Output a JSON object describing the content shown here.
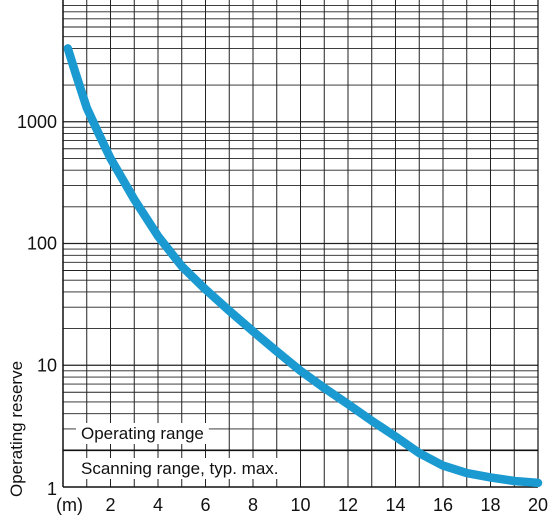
{
  "chart_data": {
    "type": "line",
    "title": "",
    "xlabel": "",
    "ylabel": "Operating reserve",
    "x_unit_label": "(m)",
    "x_tick_labels": [
      "2",
      "4",
      "6",
      "8",
      "10",
      "12",
      "14",
      "16",
      "18",
      "20"
    ],
    "y_tick_labels": [
      "1",
      "10",
      "100",
      "1000"
    ],
    "xlim": [
      0,
      20
    ],
    "ylim": [
      1,
      10000
    ],
    "yscale": "log",
    "grid": true,
    "series": [
      {
        "color": "#1a9ad0",
        "x": [
          0.2,
          0.5,
          1,
          1.5,
          2,
          3,
          4,
          5,
          6,
          7,
          8,
          9,
          10,
          11,
          12,
          13,
          14,
          15,
          16,
          17,
          18,
          19,
          20
        ],
        "y": [
          4000,
          2600,
          1300,
          800,
          500,
          230,
          115,
          65,
          42,
          28,
          19,
          13,
          9,
          6.5,
          4.8,
          3.5,
          2.6,
          1.9,
          1.5,
          1.3,
          1.2,
          1.12,
          1.08
        ]
      }
    ],
    "annotations": {
      "operating_range": "Operating range",
      "scanning_range": "Scanning range, typ. max.",
      "threshold_y": 2
    }
  }
}
